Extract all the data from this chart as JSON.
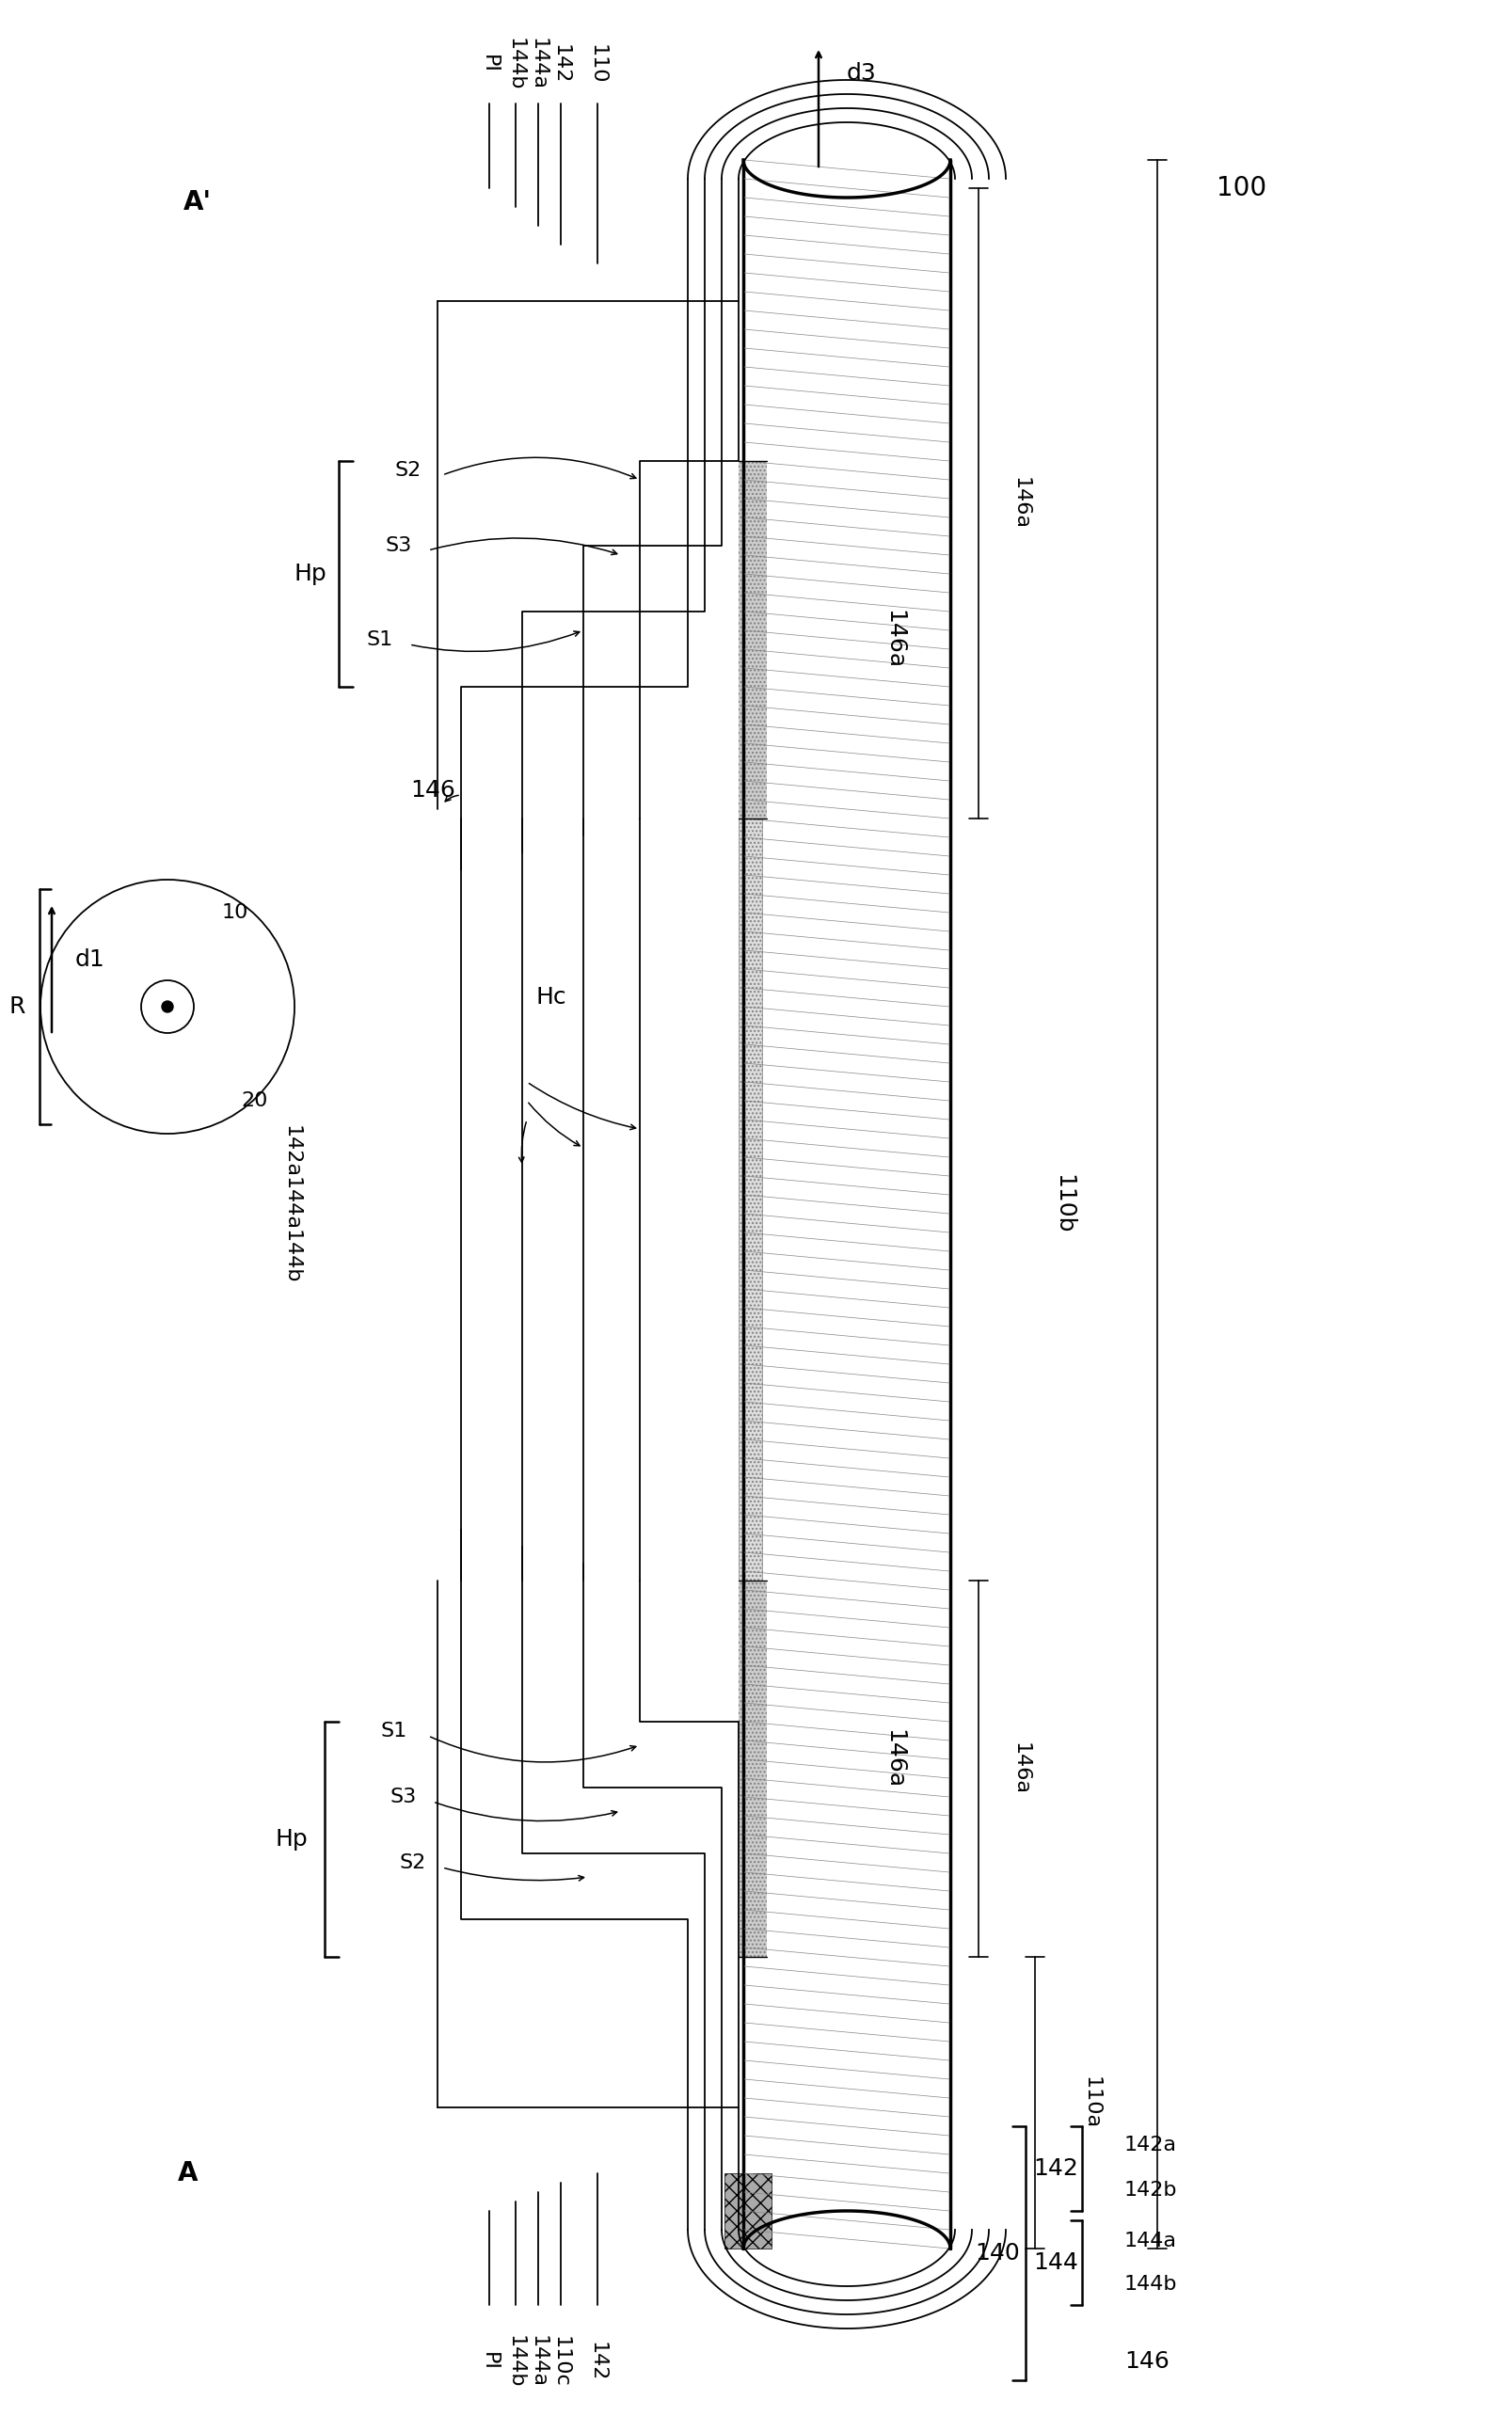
{
  "fig_width": 16.08,
  "fig_height": 25.68,
  "bg_color": "#ffffff",
  "line_color": "#000000",
  "label_color": "#000000",
  "top_labels": [
    "PI",
    "144b",
    "144a",
    "142",
    "110"
  ],
  "bot_labels": [
    "PI",
    "144b",
    "144a",
    "110c",
    "142"
  ],
  "legend_labels_142": [
    "142a",
    "142b"
  ],
  "legend_labels_144": [
    "144a",
    "144b"
  ],
  "roller_label_outer": "10",
  "roller_label_inner": "20"
}
